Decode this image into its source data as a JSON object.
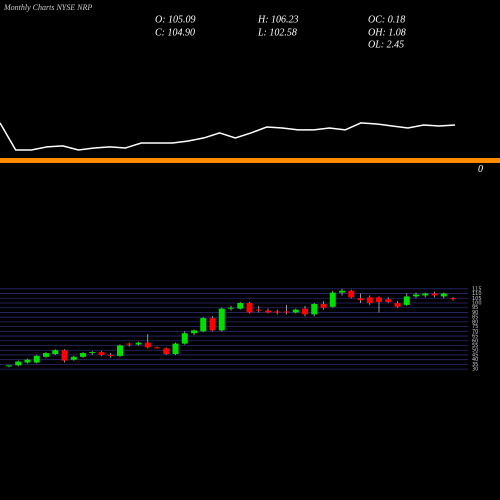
{
  "chart_data": {
    "type": "candlestick",
    "title": "Monthly Charts NYSE NRP",
    "stats": [
      "O: 105.09",
      "H: 106.23",
      "OC: 0.18",
      "C: 104.90",
      "L: 102.58",
      "OH: 1.08",
      "OL: 2.45"
    ],
    "up_color": "#00e000",
    "down_color": "#ff0000",
    "open": [
      33,
      34,
      37,
      37,
      43,
      46,
      50,
      40,
      43,
      47,
      48,
      45,
      44,
      57,
      56,
      58,
      53,
      52,
      46,
      57,
      68,
      70,
      84,
      71,
      94,
      94,
      100,
      93,
      92,
      91,
      91,
      90,
      94,
      88,
      99,
      96,
      111,
      113,
      105,
      106,
      106,
      104,
      100,
      98,
      107,
      108,
      110,
      107,
      105.09
    ],
    "high": [
      34,
      39,
      41,
      45,
      48,
      51,
      51,
      44,
      48,
      49,
      49,
      47,
      56,
      58,
      59,
      67,
      54,
      53,
      58,
      70,
      72,
      85,
      86,
      95,
      97,
      101,
      101,
      97,
      94,
      93,
      98,
      94,
      97,
      100,
      102,
      113,
      115,
      114,
      110,
      108,
      107,
      106,
      102,
      110,
      111,
      111,
      112,
      111,
      106.23
    ],
    "low": [
      32,
      33,
      36,
      36,
      42,
      45,
      37,
      39,
      42,
      45,
      44,
      42,
      43,
      54,
      55,
      52,
      52,
      45,
      45,
      56,
      66,
      69,
      70,
      70,
      92,
      93,
      89,
      90,
      89,
      88,
      88,
      89,
      86,
      86,
      93,
      95,
      108,
      105,
      100,
      98,
      90,
      100,
      95,
      97,
      105,
      106,
      106,
      105,
      102.58
    ],
    "close": [
      34,
      38,
      40,
      44,
      47,
      50,
      39,
      43,
      47,
      48,
      45,
      44,
      55,
      56,
      58,
      53,
      52,
      46,
      57,
      68,
      71,
      84,
      71,
      94,
      95,
      100,
      90,
      92,
      90,
      90,
      90,
      93,
      88,
      99,
      95,
      111,
      113,
      106,
      103,
      100,
      101,
      101,
      96,
      107,
      109,
      110,
      108,
      110,
      104.9
    ],
    "ylim": [
      28,
      118
    ],
    "yticks": [
      115,
      110,
      105,
      100,
      95,
      90,
      85,
      80,
      75,
      70,
      65,
      60,
      55,
      50,
      45,
      40,
      35,
      30
    ],
    "grid": true,
    "grid_color": "#2a2a70",
    "indicator": {
      "color": "#ffffff",
      "ylim": [
        -10,
        100
      ],
      "values": [
        25.8,
        7.2,
        7.2,
        9.3,
        10,
        7.2,
        8.6,
        9.3,
        8.6,
        12,
        12,
        12,
        13.4,
        15.5,
        18.9,
        15.5,
        18.9,
        23,
        22.3,
        21,
        21,
        22.3,
        21,
        25.8,
        25.1,
        23.7,
        22.3,
        24.4,
        23.7,
        24.4
      ]
    },
    "reference_line": {
      "value": 0,
      "color": "#ff8c00"
    }
  }
}
